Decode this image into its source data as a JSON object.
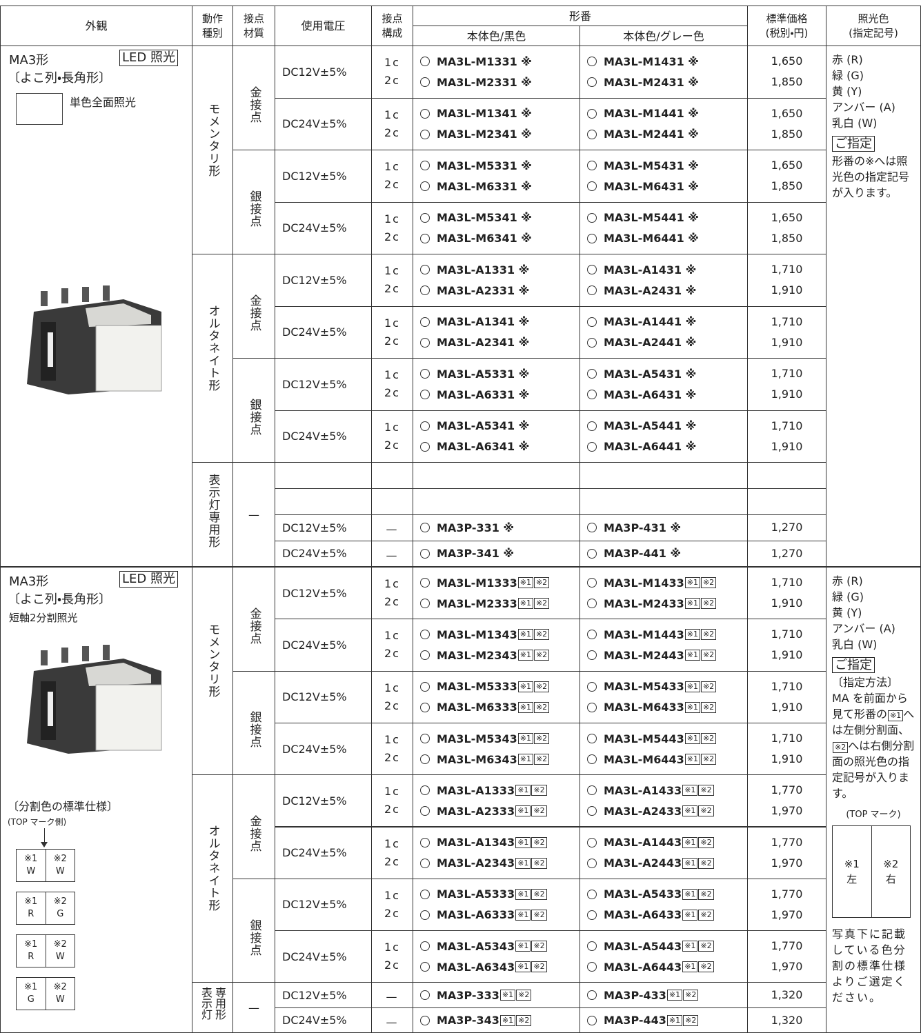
{
  "header": {
    "appearance": "外観",
    "action": [
      "動作",
      "種別"
    ],
    "material": [
      "接点",
      "材質"
    ],
    "voltage": "使用電圧",
    "contact": [
      "接点",
      "構成"
    ],
    "model": "形番",
    "black": "本体色/黒色",
    "gray": "本体色/グレー色",
    "price": [
      "標準価格",
      "(税別・円)"
    ],
    "lighting": [
      "照光色",
      "(指定記号)"
    ]
  },
  "sections": [
    {
      "appearance": {
        "title": "MA3形",
        "badge": "LED 照光",
        "subtitle": "〔よこ列・長角形〕",
        "description": "単色全面照光"
      },
      "actions": [
        {
          "label": "モメンタリ形",
          "materials": [
            {
              "label": "金接点",
              "rows": [
                {
                  "voltage": "DC12V±5%",
                  "contacts": [
                    "1c",
                    "2c"
                  ],
                  "black": [
                    "MA3L-M1331 ※",
                    "MA3L-M2331 ※"
                  ],
                  "gray": [
                    "MA3L-M1431 ※",
                    "MA3L-M2431 ※"
                  ],
                  "prices": [
                    "1,650",
                    "1,850"
                  ]
                },
                {
                  "voltage": "DC24V±5%",
                  "contacts": [
                    "1c",
                    "2c"
                  ],
                  "black": [
                    "MA3L-M1341 ※",
                    "MA3L-M2341 ※"
                  ],
                  "gray": [
                    "MA3L-M1441 ※",
                    "MA3L-M2441 ※"
                  ],
                  "prices": [
                    "1,650",
                    "1,850"
                  ]
                }
              ]
            },
            {
              "label": "銀接点",
              "rows": [
                {
                  "voltage": "DC12V±5%",
                  "contacts": [
                    "1c",
                    "2c"
                  ],
                  "black": [
                    "MA3L-M5331 ※",
                    "MA3L-M6331 ※"
                  ],
                  "gray": [
                    "MA3L-M5431 ※",
                    "MA3L-M6431 ※"
                  ],
                  "prices": [
                    "1,650",
                    "1,850"
                  ]
                },
                {
                  "voltage": "DC24V±5%",
                  "contacts": [
                    "1c",
                    "2c"
                  ],
                  "black": [
                    "MA3L-M5341 ※",
                    "MA3L-M6341 ※"
                  ],
                  "gray": [
                    "MA3L-M5441 ※",
                    "MA3L-M6441 ※"
                  ],
                  "prices": [
                    "1,650",
                    "1,850"
                  ]
                }
              ]
            }
          ]
        },
        {
          "label": "オルタネイト形",
          "materials": [
            {
              "label": "金接点",
              "rows": [
                {
                  "voltage": "DC12V±5%",
                  "contacts": [
                    "1c",
                    "2c"
                  ],
                  "black": [
                    "MA3L-A1331 ※",
                    "MA3L-A2331 ※"
                  ],
                  "gray": [
                    "MA3L-A1431 ※",
                    "MA3L-A2431 ※"
                  ],
                  "prices": [
                    "1,710",
                    "1,910"
                  ]
                },
                {
                  "voltage": "DC24V±5%",
                  "contacts": [
                    "1c",
                    "2c"
                  ],
                  "black": [
                    "MA3L-A1341 ※",
                    "MA3L-A2341 ※"
                  ],
                  "gray": [
                    "MA3L-A1441 ※",
                    "MA3L-A2441 ※"
                  ],
                  "prices": [
                    "1,710",
                    "1,910"
                  ]
                }
              ]
            },
            {
              "label": "銀接点",
              "rows": [
                {
                  "voltage": "DC12V±5%",
                  "contacts": [
                    "1c",
                    "2c"
                  ],
                  "black": [
                    "MA3L-A5331 ※",
                    "MA3L-A6331 ※"
                  ],
                  "gray": [
                    "MA3L-A5431 ※",
                    "MA3L-A6431 ※"
                  ],
                  "prices": [
                    "1,710",
                    "1,910"
                  ]
                },
                {
                  "voltage": "DC24V±5%",
                  "contacts": [
                    "1c",
                    "2c"
                  ],
                  "black": [
                    "MA3L-A5341 ※",
                    "MA3L-A6341 ※"
                  ],
                  "gray": [
                    "MA3L-A5441 ※",
                    "MA3L-A6441 ※"
                  ],
                  "prices": [
                    "1,710",
                    "1,910"
                  ]
                }
              ]
            }
          ]
        },
        {
          "label": "表示灯専用形",
          "materials": [
            {
              "label": "—",
              "rows": [
                {
                  "voltage": "DC12V±5%",
                  "contacts": [
                    "—"
                  ],
                  "black": [
                    "MA3P-331 ※"
                  ],
                  "gray": [
                    "MA3P-431 ※"
                  ],
                  "prices": [
                    "1,270"
                  ]
                },
                {
                  "voltage": "DC24V±5%",
                  "contacts": [
                    "—"
                  ],
                  "black": [
                    "MA3P-341 ※"
                  ],
                  "gray": [
                    "MA3P-441 ※"
                  ],
                  "prices": [
                    "1,270"
                  ]
                }
              ]
            }
          ]
        }
      ],
      "notes": {
        "colors": [
          "赤 (R)",
          "緑 (G)",
          "黄 (Y)",
          "アンバー (A)",
          "乳白 (W)"
        ],
        "badge": "ご指定",
        "text": "形番の※へは照光色の指定記号が入ります。"
      }
    },
    {
      "appearance": {
        "title": "MA3形",
        "badge": "LED 照光",
        "subtitle": "〔よこ列・長角形〕",
        "description": "短軸2分割照光",
        "spec_title": "〔分割色の標準仕様〕",
        "spec_note": "(TOP マーク側)",
        "combos": [
          {
            "left": [
              "※1",
              "W"
            ],
            "right": [
              "※2",
              "W"
            ]
          },
          {
            "left": [
              "※1",
              "R"
            ],
            "right": [
              "※2",
              "G"
            ]
          },
          {
            "left": [
              "※1",
              "R"
            ],
            "right": [
              "※2",
              "W"
            ]
          },
          {
            "left": [
              "※1",
              "G"
            ],
            "right": [
              "※2",
              "W"
            ]
          }
        ]
      },
      "suffix": [
        "※1",
        "※2"
      ],
      "actions": [
        {
          "label": "モメンタリ形",
          "materials": [
            {
              "label": "金接点",
              "rows": [
                {
                  "voltage": "DC12V±5%",
                  "contacts": [
                    "1c",
                    "2c"
                  ],
                  "black": [
                    "MA3L-M1333",
                    "MA3L-M2333"
                  ],
                  "gray": [
                    "MA3L-M1433",
                    "MA3L-M2433"
                  ],
                  "prices": [
                    "1,710",
                    "1,910"
                  ]
                },
                {
                  "voltage": "DC24V±5%",
                  "contacts": [
                    "1c",
                    "2c"
                  ],
                  "black": [
                    "MA3L-M1343",
                    "MA3L-M2343"
                  ],
                  "gray": [
                    "MA3L-M1443",
                    "MA3L-M2443"
                  ],
                  "prices": [
                    "1,710",
                    "1,910"
                  ]
                }
              ]
            },
            {
              "label": "銀接点",
              "rows": [
                {
                  "voltage": "DC12V±5%",
                  "contacts": [
                    "1c",
                    "2c"
                  ],
                  "black": [
                    "MA3L-M5333",
                    "MA3L-M6333"
                  ],
                  "gray": [
                    "MA3L-M5433",
                    "MA3L-M6433"
                  ],
                  "prices": [
                    "1,710",
                    "1,910"
                  ]
                },
                {
                  "voltage": "DC24V±5%",
                  "contacts": [
                    "1c",
                    "2c"
                  ],
                  "black": [
                    "MA3L-M5343",
                    "MA3L-M6343"
                  ],
                  "gray": [
                    "MA3L-M5443",
                    "MA3L-M6443"
                  ],
                  "prices": [
                    "1,710",
                    "1,910"
                  ]
                }
              ]
            }
          ]
        },
        {
          "label": "オルタネイト形",
          "materials": [
            {
              "label": "金接点",
              "rows": [
                {
                  "voltage": "DC12V±5%",
                  "contacts": [
                    "1c",
                    "2c"
                  ],
                  "black": [
                    "MA3L-A1333",
                    "MA3L-A2333"
                  ],
                  "gray": [
                    "MA3L-A1433",
                    "MA3L-A2433"
                  ],
                  "prices": [
                    "1,770",
                    "1,970"
                  ]
                },
                {
                  "voltage": "DC24V±5%",
                  "contacts": [
                    "1c",
                    "2c"
                  ],
                  "black": [
                    "MA3L-A1343",
                    "MA3L-A2343"
                  ],
                  "gray": [
                    "MA3L-A1443",
                    "MA3L-A2443"
                  ],
                  "prices": [
                    "1,770",
                    "1,970"
                  ]
                }
              ]
            },
            {
              "label": "銀接点",
              "rows": [
                {
                  "voltage": "DC12V±5%",
                  "contacts": [
                    "1c",
                    "2c"
                  ],
                  "black": [
                    "MA3L-A5333",
                    "MA3L-A6333"
                  ],
                  "gray": [
                    "MA3L-A5433",
                    "MA3L-A6433"
                  ],
                  "prices": [
                    "1,770",
                    "1,970"
                  ]
                },
                {
                  "voltage": "DC24V±5%",
                  "contacts": [
                    "1c",
                    "2c"
                  ],
                  "black": [
                    "MA3L-A5343",
                    "MA3L-A6343"
                  ],
                  "gray": [
                    "MA3L-A5443",
                    "MA3L-A6443"
                  ],
                  "prices": [
                    "1,770",
                    "1,970"
                  ]
                }
              ]
            }
          ]
        },
        {
          "label": "表示灯専用形",
          "materials": [
            {
              "label": "—",
              "rows": [
                {
                  "voltage": "DC12V±5%",
                  "contacts": [
                    "—"
                  ],
                  "black": [
                    "MA3P-333"
                  ],
                  "gray": [
                    "MA3P-433"
                  ],
                  "prices": [
                    "1,320"
                  ]
                },
                {
                  "voltage": "DC24V±5%",
                  "contacts": [
                    "—"
                  ],
                  "black": [
                    "MA3P-343"
                  ],
                  "gray": [
                    "MA3P-443"
                  ],
                  "prices": [
                    "1,320"
                  ]
                }
              ]
            }
          ]
        }
      ],
      "notes": {
        "colors": [
          "赤 (R)",
          "緑 (G)",
          "黄 (Y)",
          "アンバー (A)",
          "乳白 (W)"
        ],
        "badge": "ご指定",
        "method": [
          {
            "text": "〔指定方法〕"
          },
          {
            "text": "MA を前面から見て形番の"
          },
          {
            "box": "※1"
          },
          {
            "text": "へは左側分割面、"
          },
          {
            "box": "※2"
          },
          {
            "text": "へは右側分割面の照光色の指定記号が入ります。"
          }
        ],
        "top_title": "(TOP マーク)",
        "top": [
          [
            "※1",
            "左"
          ],
          [
            "※2",
            "右"
          ]
        ],
        "footer": "写真下に記載している色分割の標準仕様よりご選定ください。"
      }
    }
  ]
}
